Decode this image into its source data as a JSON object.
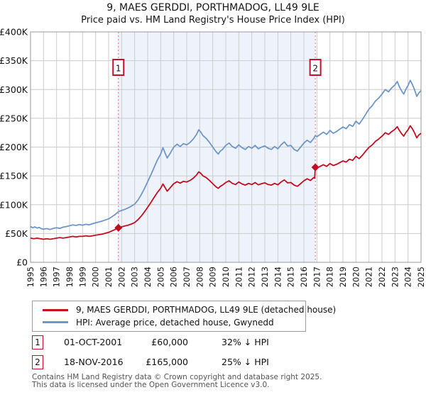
{
  "chart_data": {
    "type": "line",
    "title": "9, MAES GERDDI, PORTHMADOG, LL49 9LE",
    "subtitle": "Price paid vs. HM Land Registry's House Price Index (HPI)",
    "xlim": [
      1995,
      2025
    ],
    "ylim": [
      0,
      400000
    ],
    "grid": true,
    "x_ticks": [
      1995,
      1996,
      1997,
      1998,
      1999,
      2000,
      2001,
      2002,
      2003,
      2004,
      2005,
      2006,
      2007,
      2008,
      2009,
      2010,
      2011,
      2012,
      2013,
      2014,
      2015,
      2016,
      2017,
      2018,
      2019,
      2020,
      2021,
      2022,
      2023,
      2024,
      2025
    ],
    "y_ticks": [
      {
        "value": 0,
        "label": "£0"
      },
      {
        "value": 50000,
        "label": "£50K"
      },
      {
        "value": 100000,
        "label": "£100K"
      },
      {
        "value": 150000,
        "label": "£150K"
      },
      {
        "value": 200000,
        "label": "£200K"
      },
      {
        "value": 250000,
        "label": "£250K"
      },
      {
        "value": 300000,
        "label": "£300K"
      },
      {
        "value": 350000,
        "label": "£350K"
      },
      {
        "value": 400000,
        "label": "£400K"
      }
    ],
    "shaded_region": {
      "from": 2001.75,
      "to": 2016.88,
      "color": "#eef3fb"
    },
    "events": [
      {
        "label": "1",
        "x": 2001.75
      },
      {
        "label": "2",
        "x": 2016.88
      }
    ],
    "event_line_color": "#f0808c",
    "sale_markers": [
      [
        2001.75,
        60000
      ],
      [
        2016.88,
        165000
      ]
    ],
    "series": [
      {
        "name": "9, MAES GERDDI, PORTHMADOG, LL49 9LE (detached house)",
        "color": "#c60c20",
        "points": [
          [
            1995.0,
            42000
          ],
          [
            1995.25,
            41000
          ],
          [
            1995.5,
            42000
          ],
          [
            1995.75,
            41000
          ],
          [
            1996.0,
            40000
          ],
          [
            1996.25,
            41000
          ],
          [
            1996.5,
            40000
          ],
          [
            1996.75,
            41000
          ],
          [
            1997.0,
            42000
          ],
          [
            1997.25,
            43000
          ],
          [
            1997.5,
            42000
          ],
          [
            1997.75,
            43000
          ],
          [
            1998.0,
            44000
          ],
          [
            1998.25,
            45000
          ],
          [
            1998.5,
            44000
          ],
          [
            1998.75,
            45000
          ],
          [
            1999.0,
            45000
          ],
          [
            1999.25,
            46000
          ],
          [
            1999.5,
            45000
          ],
          [
            1999.75,
            46000
          ],
          [
            2000.0,
            47000
          ],
          [
            2000.25,
            48000
          ],
          [
            2000.5,
            49000
          ],
          [
            2000.75,
            50500
          ],
          [
            2001.0,
            52000
          ],
          [
            2001.25,
            54500
          ],
          [
            2001.5,
            57000
          ],
          [
            2001.75,
            60000
          ],
          [
            2002.0,
            61500
          ],
          [
            2002.25,
            63000
          ],
          [
            2002.5,
            64500
          ],
          [
            2002.75,
            66500
          ],
          [
            2003.0,
            69000
          ],
          [
            2003.25,
            74000
          ],
          [
            2003.5,
            80000
          ],
          [
            2003.75,
            87500
          ],
          [
            2004.0,
            95500
          ],
          [
            2004.25,
            104000
          ],
          [
            2004.5,
            113000
          ],
          [
            2004.75,
            121500
          ],
          [
            2005.0,
            128500
          ],
          [
            2005.17,
            136000
          ],
          [
            2005.33,
            130000
          ],
          [
            2005.5,
            123500
          ],
          [
            2005.75,
            130000
          ],
          [
            2006.0,
            136500
          ],
          [
            2006.25,
            140000
          ],
          [
            2006.5,
            137500
          ],
          [
            2006.75,
            140500
          ],
          [
            2007.0,
            139500
          ],
          [
            2007.25,
            142000
          ],
          [
            2007.5,
            146000
          ],
          [
            2007.75,
            151500
          ],
          [
            2007.92,
            157000
          ],
          [
            2008.08,
            154500
          ],
          [
            2008.25,
            150000
          ],
          [
            2008.5,
            147000
          ],
          [
            2008.75,
            142000
          ],
          [
            2009.0,
            136500
          ],
          [
            2009.25,
            131000
          ],
          [
            2009.42,
            128500
          ],
          [
            2009.58,
            132000
          ],
          [
            2009.75,
            134000
          ],
          [
            2010.0,
            138500
          ],
          [
            2010.25,
            141500
          ],
          [
            2010.5,
            137000
          ],
          [
            2010.75,
            135000
          ],
          [
            2011.0,
            139500
          ],
          [
            2011.25,
            136000
          ],
          [
            2011.5,
            134000
          ],
          [
            2011.75,
            137000
          ],
          [
            2012.0,
            135000
          ],
          [
            2012.25,
            138500
          ],
          [
            2012.5,
            134500
          ],
          [
            2012.75,
            136500
          ],
          [
            2013.0,
            138000
          ],
          [
            2013.25,
            135000
          ],
          [
            2013.5,
            134000
          ],
          [
            2013.75,
            137000
          ],
          [
            2014.0,
            134500
          ],
          [
            2014.25,
            139500
          ],
          [
            2014.5,
            143000
          ],
          [
            2014.75,
            138000
          ],
          [
            2015.0,
            138500
          ],
          [
            2015.25,
            134000
          ],
          [
            2015.5,
            132000
          ],
          [
            2015.75,
            136500
          ],
          [
            2016.0,
            141500
          ],
          [
            2016.25,
            145000
          ],
          [
            2016.5,
            142000
          ],
          [
            2016.75,
            147000
          ],
          [
            2016.83,
            146000
          ],
          [
            2016.88,
            165000
          ],
          [
            2017.0,
            163500
          ],
          [
            2017.25,
            166500
          ],
          [
            2017.5,
            169500
          ],
          [
            2017.75,
            166500
          ],
          [
            2018.0,
            171500
          ],
          [
            2018.25,
            168000
          ],
          [
            2018.5,
            170000
          ],
          [
            2018.75,
            173000
          ],
          [
            2019.0,
            176000
          ],
          [
            2019.25,
            174000
          ],
          [
            2019.5,
            179000
          ],
          [
            2019.75,
            177000
          ],
          [
            2020.0,
            184000
          ],
          [
            2020.25,
            180000
          ],
          [
            2020.5,
            186000
          ],
          [
            2020.75,
            193000
          ],
          [
            2021.0,
            199500
          ],
          [
            2021.25,
            204000
          ],
          [
            2021.5,
            210000
          ],
          [
            2021.75,
            214000
          ],
          [
            2022.0,
            219000
          ],
          [
            2022.25,
            225000
          ],
          [
            2022.5,
            222000
          ],
          [
            2022.75,
            227000
          ],
          [
            2023.0,
            231000
          ],
          [
            2023.17,
            235500
          ],
          [
            2023.33,
            229000
          ],
          [
            2023.5,
            223500
          ],
          [
            2023.67,
            219000
          ],
          [
            2023.83,
            225000
          ],
          [
            2024.0,
            230000
          ],
          [
            2024.17,
            237000
          ],
          [
            2024.33,
            232000
          ],
          [
            2024.5,
            225000
          ],
          [
            2024.67,
            216000
          ],
          [
            2024.83,
            221000
          ],
          [
            2025.0,
            224000
          ]
        ]
      },
      {
        "name": "HPI: Average price, detached house, Gwynedd",
        "color": "#6e96c8",
        "points": [
          [
            1995.0,
            62000
          ],
          [
            1995.17,
            60000
          ],
          [
            1995.33,
            61500
          ],
          [
            1995.5,
            59500
          ],
          [
            1995.67,
            60500
          ],
          [
            1995.83,
            58500
          ],
          [
            1996.0,
            57500
          ],
          [
            1996.25,
            58500
          ],
          [
            1996.5,
            57000
          ],
          [
            1996.75,
            59000
          ],
          [
            1997.0,
            60000
          ],
          [
            1997.25,
            59000
          ],
          [
            1997.5,
            61000
          ],
          [
            1997.75,
            62000
          ],
          [
            1998.0,
            63500
          ],
          [
            1998.25,
            65000
          ],
          [
            1998.5,
            64000
          ],
          [
            1998.75,
            65500
          ],
          [
            1999.0,
            64500
          ],
          [
            1999.25,
            66000
          ],
          [
            1999.5,
            65000
          ],
          [
            1999.75,
            67000
          ],
          [
            2000.0,
            68500
          ],
          [
            2000.25,
            70000
          ],
          [
            2000.5,
            71500
          ],
          [
            2000.75,
            73500
          ],
          [
            2001.0,
            75500
          ],
          [
            2001.25,
            79000
          ],
          [
            2001.5,
            83000
          ],
          [
            2001.75,
            88000
          ],
          [
            2002.0,
            90000
          ],
          [
            2002.25,
            92000
          ],
          [
            2002.5,
            94500
          ],
          [
            2002.75,
            97500
          ],
          [
            2003.0,
            101000
          ],
          [
            2003.25,
            108000
          ],
          [
            2003.5,
            117000
          ],
          [
            2003.75,
            128000
          ],
          [
            2004.0,
            140000
          ],
          [
            2004.25,
            152000
          ],
          [
            2004.5,
            165000
          ],
          [
            2004.75,
            178000
          ],
          [
            2005.0,
            188000
          ],
          [
            2005.17,
            199000
          ],
          [
            2005.33,
            190000
          ],
          [
            2005.5,
            181000
          ],
          [
            2005.75,
            190000
          ],
          [
            2006.0,
            200000
          ],
          [
            2006.25,
            205000
          ],
          [
            2006.5,
            201000
          ],
          [
            2006.75,
            206000
          ],
          [
            2007.0,
            204000
          ],
          [
            2007.25,
            208000
          ],
          [
            2007.5,
            214000
          ],
          [
            2007.75,
            222000
          ],
          [
            2007.92,
            230000
          ],
          [
            2008.08,
            226000
          ],
          [
            2008.25,
            220000
          ],
          [
            2008.5,
            215000
          ],
          [
            2008.75,
            208000
          ],
          [
            2009.0,
            200000
          ],
          [
            2009.25,
            192000
          ],
          [
            2009.42,
            188000
          ],
          [
            2009.58,
            193000
          ],
          [
            2009.75,
            196000
          ],
          [
            2010.0,
            203000
          ],
          [
            2010.25,
            207000
          ],
          [
            2010.5,
            201000
          ],
          [
            2010.75,
            198000
          ],
          [
            2011.0,
            204000
          ],
          [
            2011.25,
            199000
          ],
          [
            2011.5,
            196000
          ],
          [
            2011.75,
            201000
          ],
          [
            2012.0,
            198000
          ],
          [
            2012.25,
            203000
          ],
          [
            2012.5,
            197000
          ],
          [
            2012.75,
            200000
          ],
          [
            2013.0,
            202000
          ],
          [
            2013.25,
            198000
          ],
          [
            2013.5,
            196000
          ],
          [
            2013.75,
            201000
          ],
          [
            2014.0,
            197000
          ],
          [
            2014.25,
            204000
          ],
          [
            2014.5,
            209000
          ],
          [
            2014.75,
            202000
          ],
          [
            2015.0,
            203000
          ],
          [
            2015.25,
            196000
          ],
          [
            2015.5,
            193000
          ],
          [
            2015.75,
            200000
          ],
          [
            2016.0,
            207000
          ],
          [
            2016.25,
            212000
          ],
          [
            2016.5,
            208000
          ],
          [
            2016.75,
            215000
          ],
          [
            2016.88,
            220000
          ],
          [
            2017.0,
            218000
          ],
          [
            2017.25,
            222000
          ],
          [
            2017.5,
            226000
          ],
          [
            2017.75,
            222000
          ],
          [
            2018.0,
            229000
          ],
          [
            2018.25,
            224000
          ],
          [
            2018.5,
            227000
          ],
          [
            2018.75,
            231000
          ],
          [
            2019.0,
            235000
          ],
          [
            2019.25,
            232000
          ],
          [
            2019.5,
            239000
          ],
          [
            2019.75,
            236000
          ],
          [
            2020.0,
            245000
          ],
          [
            2020.25,
            240000
          ],
          [
            2020.5,
            248000
          ],
          [
            2020.75,
            257000
          ],
          [
            2021.0,
            266000
          ],
          [
            2021.25,
            272000
          ],
          [
            2021.5,
            280000
          ],
          [
            2021.75,
            285000
          ],
          [
            2022.0,
            292000
          ],
          [
            2022.25,
            300000
          ],
          [
            2022.5,
            296000
          ],
          [
            2022.75,
            303000
          ],
          [
            2023.0,
            308000
          ],
          [
            2023.17,
            314000
          ],
          [
            2023.33,
            305000
          ],
          [
            2023.5,
            298000
          ],
          [
            2023.67,
            292000
          ],
          [
            2023.83,
            300000
          ],
          [
            2024.0,
            307000
          ],
          [
            2024.17,
            316000
          ],
          [
            2024.33,
            309000
          ],
          [
            2024.5,
            300000
          ],
          [
            2024.67,
            288000
          ],
          [
            2024.83,
            294000
          ],
          [
            2025.0,
            298000
          ]
        ]
      }
    ]
  },
  "legend": {
    "entries": [
      {
        "label": "9, MAES GERDDI, PORTHMADOG, LL49 9LE (detached house)",
        "color": "#c60c20"
      },
      {
        "label": "HPI: Average price, detached house, Gwynedd",
        "color": "#6e96c8"
      }
    ]
  },
  "annotations": [
    {
      "num": "1",
      "date": "01-OCT-2001",
      "price": "£60,000",
      "hpi_diff": "32% ↓ HPI"
    },
    {
      "num": "2",
      "date": "18-NOV-2016",
      "price": "£165,000",
      "hpi_diff": "25% ↓ HPI"
    }
  ],
  "footer": {
    "line1": "Contains HM Land Registry data © Crown copyright and database right 2025.",
    "line2": "This data is licensed under the Open Government Licence v3.0."
  }
}
